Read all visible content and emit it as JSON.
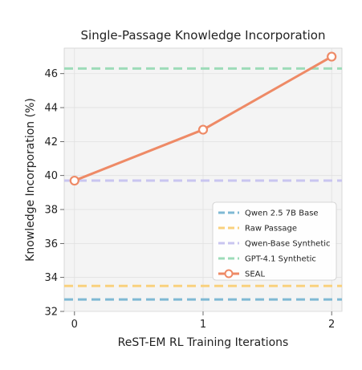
{
  "chart_data": {
    "type": "line",
    "title": "Single-Passage Knowledge Incorporation",
    "xlabel": "ReST-EM RL Training Iterations",
    "ylabel": "Knowledge Incorporation (%)",
    "x_ticks": [
      0,
      1,
      2
    ],
    "xlim": [
      -0.08,
      2.08
    ],
    "y_ticks": [
      32,
      34,
      36,
      38,
      40,
      42,
      44,
      46
    ],
    "ylim": [
      32,
      47.5
    ],
    "grid": true,
    "legend_position": "lower-right",
    "baselines": [
      {
        "name": "Qwen 2.5 7B Base",
        "value": 32.7,
        "color": "#7fb9d4"
      },
      {
        "name": "Raw Passage",
        "value": 33.5,
        "color": "#f9d17e"
      },
      {
        "name": "Qwen-Base Synthetic",
        "value": 39.7,
        "color": "#c9c5f0"
      },
      {
        "name": "GPT-4.1 Synthetic",
        "value": 46.3,
        "color": "#9ddcb9"
      }
    ],
    "series": [
      {
        "name": "SEAL",
        "x": [
          0,
          1,
          2
        ],
        "values": [
          39.7,
          42.7,
          47.0
        ],
        "color": "#ee8a66"
      }
    ]
  }
}
